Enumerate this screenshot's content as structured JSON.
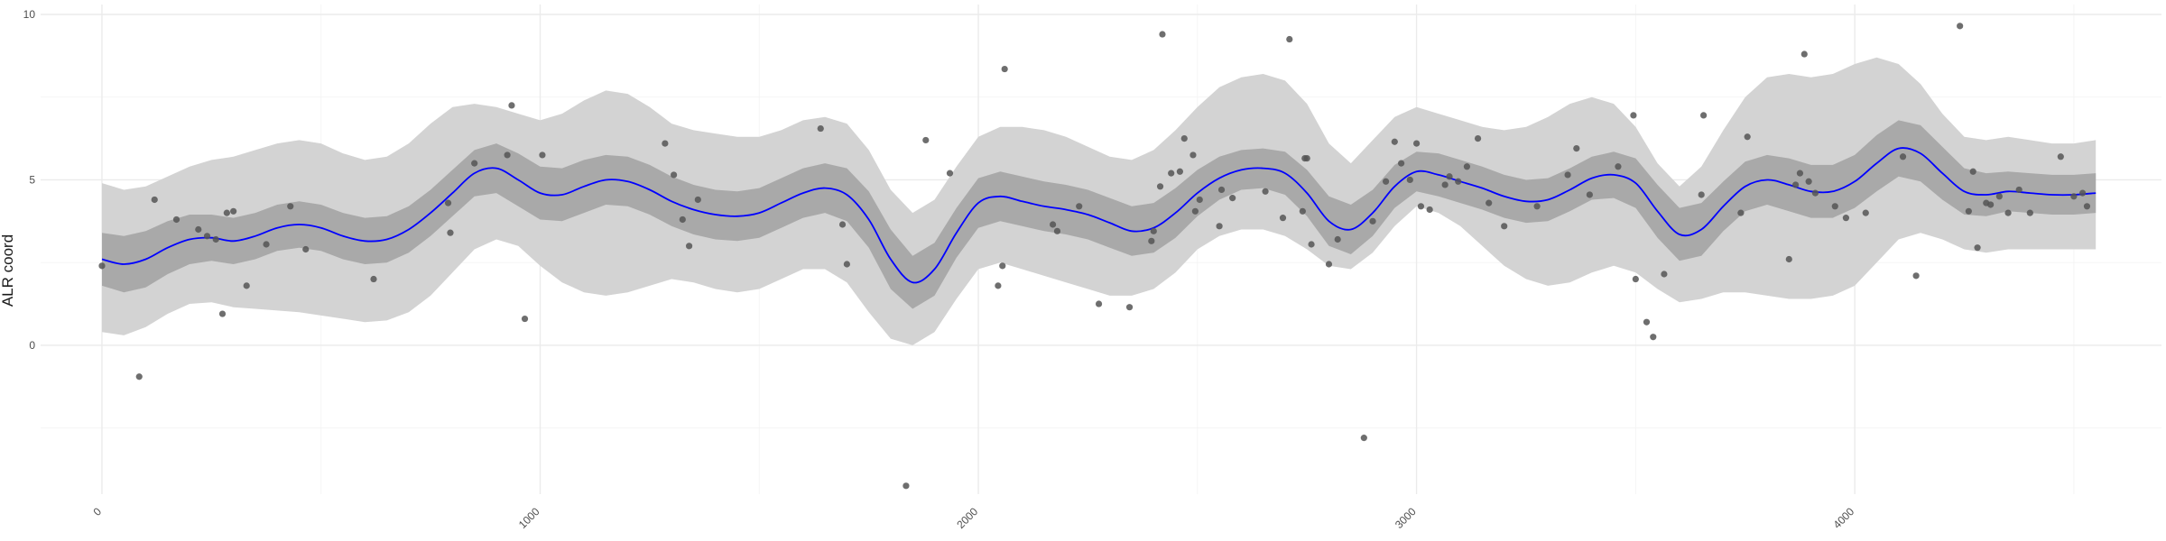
{
  "chart_data": {
    "type": "line",
    "title": "",
    "xlabel": "",
    "ylabel": "ALR coord",
    "xlim": [
      -140,
      4700
    ],
    "ylim": [
      -4.5,
      10.3
    ],
    "x_ticks": [
      0,
      1000,
      2000,
      3000,
      4000
    ],
    "x_tick_labels": [
      "0",
      "1000",
      "2000",
      "3000",
      "4000"
    ],
    "y_ticks": [
      0,
      5,
      10
    ],
    "y_tick_labels": [
      "0",
      "5",
      "10"
    ],
    "grid": true,
    "legend": "none",
    "colors": {
      "line": "#0000ff",
      "inner_band": "#a9a9a9",
      "outer_band": "#d3d3d3",
      "points": "#555555",
      "grid": "#ebebeb"
    },
    "series": [
      {
        "role": "mean",
        "x": [
          0,
          50,
          100,
          150,
          200,
          250,
          300,
          350,
          400,
          450,
          500,
          550,
          600,
          650,
          700,
          750,
          800,
          850,
          900,
          950,
          1000,
          1050,
          1100,
          1150,
          1200,
          1250,
          1300,
          1350,
          1400,
          1450,
          1500,
          1550,
          1600,
          1650,
          1700,
          1750,
          1800,
          1850,
          1900,
          1950,
          2000,
          2050,
          2100,
          2150,
          2200,
          2250,
          2300,
          2350,
          2400,
          2450,
          2500,
          2550,
          2600,
          2650,
          2700,
          2750,
          2800,
          2850,
          2900,
          2950,
          3000,
          3050,
          3100,
          3150,
          3200,
          3250,
          3300,
          3350,
          3400,
          3450,
          3500,
          3550,
          3600,
          3650,
          3700,
          3750,
          3800,
          3850,
          3900,
          3950,
          4000,
          4050,
          4100,
          4150,
          4200,
          4250,
          4300,
          4350,
          4400,
          4450,
          4500,
          4550
        ],
        "y": [
          2.6,
          2.45,
          2.6,
          2.95,
          3.2,
          3.25,
          3.15,
          3.3,
          3.55,
          3.65,
          3.55,
          3.3,
          3.15,
          3.2,
          3.5,
          4.0,
          4.6,
          5.2,
          5.35,
          5.0,
          4.6,
          4.55,
          4.8,
          5.0,
          4.95,
          4.7,
          4.35,
          4.1,
          3.95,
          3.9,
          4.0,
          4.3,
          4.6,
          4.75,
          4.55,
          3.8,
          2.6,
          1.9,
          2.3,
          3.4,
          4.3,
          4.5,
          4.35,
          4.2,
          4.1,
          3.95,
          3.7,
          3.45,
          3.55,
          4.0,
          4.6,
          5.05,
          5.3,
          5.35,
          5.2,
          4.6,
          3.75,
          3.5,
          4.0,
          4.8,
          5.25,
          5.15,
          4.95,
          4.75,
          4.5,
          4.35,
          4.4,
          4.7,
          5.05,
          5.15,
          4.9,
          4.05,
          3.35,
          3.5,
          4.2,
          4.8,
          5.0,
          4.85,
          4.65,
          4.65,
          4.95,
          5.5,
          5.95,
          5.8,
          5.2,
          4.65,
          4.55,
          4.65,
          4.6,
          4.55,
          4.55,
          4.6
        ]
      },
      {
        "role": "inner_band_upper",
        "x": [
          0,
          50,
          100,
          150,
          200,
          250,
          300,
          350,
          400,
          450,
          500,
          550,
          600,
          650,
          700,
          750,
          800,
          850,
          900,
          950,
          1000,
          1050,
          1100,
          1150,
          1200,
          1250,
          1300,
          1350,
          1400,
          1450,
          1500,
          1550,
          1600,
          1650,
          1700,
          1750,
          1800,
          1850,
          1900,
          1950,
          2000,
          2050,
          2100,
          2150,
          2200,
          2250,
          2300,
          2350,
          2400,
          2450,
          2500,
          2550,
          2600,
          2650,
          2700,
          2750,
          2800,
          2850,
          2900,
          2950,
          3000,
          3050,
          3100,
          3150,
          3200,
          3250,
          3300,
          3350,
          3400,
          3450,
          3500,
          3550,
          3600,
          3650,
          3700,
          3750,
          3800,
          3850,
          3900,
          3950,
          4000,
          4050,
          4100,
          4150,
          4200,
          4250,
          4300,
          4350,
          4400,
          4450,
          4500,
          4550
        ],
        "y": [
          3.4,
          3.3,
          3.45,
          3.75,
          3.95,
          3.95,
          3.85,
          4.0,
          4.25,
          4.35,
          4.25,
          4.0,
          3.85,
          3.9,
          4.2,
          4.7,
          5.3,
          5.9,
          6.1,
          5.8,
          5.4,
          5.35,
          5.6,
          5.75,
          5.7,
          5.45,
          5.1,
          4.85,
          4.7,
          4.65,
          4.75,
          5.05,
          5.35,
          5.5,
          5.35,
          4.65,
          3.5,
          2.7,
          3.1,
          4.15,
          5.05,
          5.25,
          5.1,
          4.95,
          4.85,
          4.7,
          4.45,
          4.2,
          4.3,
          4.75,
          5.3,
          5.7,
          5.9,
          5.95,
          5.85,
          5.3,
          4.5,
          4.25,
          4.7,
          5.45,
          5.85,
          5.8,
          5.6,
          5.4,
          5.15,
          5.0,
          5.05,
          5.35,
          5.7,
          5.85,
          5.65,
          4.85,
          4.15,
          4.3,
          4.95,
          5.55,
          5.75,
          5.65,
          5.45,
          5.45,
          5.75,
          6.35,
          6.8,
          6.65,
          6.0,
          5.35,
          5.2,
          5.25,
          5.2,
          5.15,
          5.15,
          5.2
        ]
      },
      {
        "role": "inner_band_lower",
        "x": [
          0,
          50,
          100,
          150,
          200,
          250,
          300,
          350,
          400,
          450,
          500,
          550,
          600,
          650,
          700,
          750,
          800,
          850,
          900,
          950,
          1000,
          1050,
          1100,
          1150,
          1200,
          1250,
          1300,
          1350,
          1400,
          1450,
          1500,
          1550,
          1600,
          1650,
          1700,
          1750,
          1800,
          1850,
          1900,
          1950,
          2000,
          2050,
          2100,
          2150,
          2200,
          2250,
          2300,
          2350,
          2400,
          2450,
          2500,
          2550,
          2600,
          2650,
          2700,
          2750,
          2800,
          2850,
          2900,
          2950,
          3000,
          3050,
          3100,
          3150,
          3200,
          3250,
          3300,
          3350,
          3400,
          3450,
          3500,
          3550,
          3600,
          3650,
          3700,
          3750,
          3800,
          3850,
          3900,
          3950,
          4000,
          4050,
          4100,
          4150,
          4200,
          4250,
          4300,
          4350,
          4400,
          4450,
          4500,
          4550
        ],
        "y": [
          1.8,
          1.6,
          1.75,
          2.15,
          2.45,
          2.55,
          2.45,
          2.6,
          2.85,
          2.95,
          2.85,
          2.6,
          2.45,
          2.5,
          2.8,
          3.3,
          3.9,
          4.5,
          4.6,
          4.2,
          3.8,
          3.75,
          4.0,
          4.25,
          4.2,
          3.95,
          3.6,
          3.35,
          3.2,
          3.15,
          3.25,
          3.55,
          3.85,
          4.0,
          3.75,
          2.95,
          1.7,
          1.1,
          1.5,
          2.65,
          3.55,
          3.75,
          3.6,
          3.45,
          3.35,
          3.2,
          2.95,
          2.7,
          2.8,
          3.25,
          3.9,
          4.4,
          4.7,
          4.75,
          4.55,
          3.9,
          3.0,
          2.75,
          3.3,
          4.15,
          4.65,
          4.5,
          4.3,
          4.1,
          3.85,
          3.7,
          3.75,
          4.05,
          4.4,
          4.45,
          4.15,
          3.25,
          2.55,
          2.7,
          3.45,
          4.05,
          4.25,
          4.05,
          3.85,
          3.85,
          4.15,
          4.65,
          5.1,
          4.95,
          4.4,
          3.95,
          3.9,
          4.05,
          4.0,
          3.95,
          3.95,
          4.0
        ]
      },
      {
        "role": "outer_band_upper",
        "x": [
          0,
          50,
          100,
          150,
          200,
          250,
          300,
          350,
          400,
          450,
          500,
          550,
          600,
          650,
          700,
          750,
          800,
          850,
          900,
          950,
          1000,
          1050,
          1100,
          1150,
          1200,
          1250,
          1300,
          1350,
          1400,
          1450,
          1500,
          1550,
          1600,
          1650,
          1700,
          1750,
          1800,
          1850,
          1900,
          1950,
          2000,
          2050,
          2100,
          2150,
          2200,
          2250,
          2300,
          2350,
          2400,
          2450,
          2500,
          2550,
          2600,
          2650,
          2700,
          2750,
          2800,
          2850,
          2900,
          2950,
          3000,
          3050,
          3100,
          3150,
          3200,
          3250,
          3300,
          3350,
          3400,
          3450,
          3500,
          3550,
          3600,
          3650,
          3700,
          3750,
          3800,
          3850,
          3900,
          3950,
          4000,
          4050,
          4100,
          4150,
          4200,
          4250,
          4300,
          4350,
          4400,
          4450,
          4500,
          4550
        ],
        "y": [
          4.9,
          4.7,
          4.8,
          5.1,
          5.4,
          5.6,
          5.7,
          5.9,
          6.1,
          6.2,
          6.1,
          5.8,
          5.6,
          5.7,
          6.1,
          6.7,
          7.2,
          7.3,
          7.2,
          7.0,
          6.8,
          7.0,
          7.4,
          7.7,
          7.6,
          7.2,
          6.7,
          6.5,
          6.4,
          6.3,
          6.3,
          6.5,
          6.8,
          6.9,
          6.7,
          5.9,
          4.7,
          4.0,
          4.4,
          5.4,
          6.3,
          6.6,
          6.6,
          6.5,
          6.3,
          6.0,
          5.7,
          5.6,
          5.9,
          6.5,
          7.2,
          7.8,
          8.1,
          8.2,
          8.0,
          7.3,
          6.1,
          5.5,
          6.2,
          6.9,
          7.2,
          7.0,
          6.8,
          6.6,
          6.5,
          6.6,
          6.9,
          7.3,
          7.5,
          7.3,
          6.6,
          5.5,
          4.8,
          5.4,
          6.5,
          7.5,
          8.1,
          8.2,
          8.1,
          8.2,
          8.5,
          8.7,
          8.5,
          7.9,
          7.0,
          6.3,
          6.2,
          6.3,
          6.2,
          6.1,
          6.1,
          6.2
        ]
      },
      {
        "role": "outer_band_lower",
        "x": [
          0,
          50,
          100,
          150,
          200,
          250,
          300,
          350,
          400,
          450,
          500,
          550,
          600,
          650,
          700,
          750,
          800,
          850,
          900,
          950,
          1000,
          1050,
          1100,
          1150,
          1200,
          1250,
          1300,
          1350,
          1400,
          1450,
          1500,
          1550,
          1600,
          1650,
          1700,
          1750,
          1800,
          1850,
          1900,
          1950,
          2000,
          2050,
          2100,
          2150,
          2200,
          2250,
          2300,
          2350,
          2400,
          2450,
          2500,
          2550,
          2600,
          2650,
          2700,
          2750,
          2800,
          2850,
          2900,
          2950,
          3000,
          3050,
          3100,
          3150,
          3200,
          3250,
          3300,
          3350,
          3400,
          3450,
          3500,
          3550,
          3600,
          3650,
          3700,
          3750,
          3800,
          3850,
          3900,
          3950,
          4000,
          4050,
          4100,
          4150,
          4200,
          4250,
          4300,
          4350,
          4400,
          4450,
          4500,
          4550
        ],
        "y": [
          0.4,
          0.3,
          0.55,
          0.95,
          1.25,
          1.3,
          1.15,
          1.1,
          1.05,
          1.0,
          0.9,
          0.8,
          0.7,
          0.75,
          1.0,
          1.5,
          2.2,
          2.9,
          3.2,
          3.0,
          2.4,
          1.9,
          1.6,
          1.5,
          1.6,
          1.8,
          2.0,
          1.9,
          1.7,
          1.6,
          1.7,
          2.0,
          2.3,
          2.3,
          1.9,
          1.0,
          0.2,
          0.0,
          0.4,
          1.4,
          2.3,
          2.5,
          2.3,
          2.1,
          1.9,
          1.7,
          1.5,
          1.5,
          1.7,
          2.2,
          2.9,
          3.3,
          3.5,
          3.5,
          3.3,
          2.9,
          2.4,
          2.3,
          2.8,
          3.6,
          4.2,
          4.0,
          3.6,
          3.0,
          2.4,
          2.0,
          1.8,
          1.9,
          2.2,
          2.4,
          2.2,
          1.7,
          1.3,
          1.4,
          1.6,
          1.6,
          1.5,
          1.4,
          1.4,
          1.5,
          1.8,
          2.5,
          3.2,
          3.4,
          3.2,
          2.9,
          2.8,
          2.9,
          2.9,
          2.9,
          2.9,
          2.9
        ]
      }
    ],
    "points": {
      "x": [
        0,
        85,
        120,
        170,
        220,
        240,
        260,
        275,
        285,
        300,
        330,
        375,
        430,
        465,
        620,
        790,
        795,
        850,
        925,
        935,
        965,
        1005,
        1285,
        1305,
        1325,
        1340,
        1360,
        1640,
        1690,
        1700,
        1835,
        1880,
        1935,
        2045,
        2055,
        2060,
        2170,
        2180,
        2230,
        2275,
        2345,
        2395,
        2400,
        2415,
        2420,
        2440,
        2460,
        2470,
        2490,
        2495,
        2505,
        2550,
        2555,
        2580,
        2655,
        2695,
        2710,
        2740,
        2745,
        2750,
        2760,
        2800,
        2820,
        2880,
        2900,
        2930,
        2950,
        2965,
        2985,
        3000,
        3010,
        3030,
        3065,
        3075,
        3095,
        3115,
        3140,
        3165,
        3200,
        3275,
        3345,
        3365,
        3395,
        3460,
        3495,
        3500,
        3525,
        3540,
        3565,
        3650,
        3655,
        3740,
        3755,
        3850,
        3865,
        3875,
        3885,
        3895,
        3910,
        3955,
        3980,
        4025,
        4110,
        4140,
        4240,
        4260,
        4270,
        4280,
        4300,
        4310,
        4330,
        4350,
        4375,
        4400,
        4470,
        4500,
        4520,
        4530
      ],
      "y": [
        2.4,
        -0.95,
        4.4,
        3.8,
        3.5,
        3.3,
        3.2,
        0.95,
        4.0,
        4.05,
        1.8,
        3.05,
        4.2,
        2.9,
        2.0,
        4.3,
        3.4,
        5.5,
        5.75,
        7.25,
        0.8,
        5.75,
        6.1,
        5.15,
        3.8,
        3.0,
        4.4,
        6.55,
        3.65,
        2.45,
        -4.25,
        6.2,
        5.2,
        1.8,
        2.4,
        8.35,
        3.65,
        3.45,
        4.2,
        1.25,
        1.15,
        3.15,
        3.45,
        4.8,
        9.4,
        5.2,
        5.25,
        6.25,
        5.75,
        4.05,
        4.4,
        3.6,
        4.7,
        4.45,
        4.65,
        3.85,
        9.25,
        4.05,
        5.65,
        5.65,
        3.05,
        2.45,
        3.2,
        -2.8,
        3.75,
        4.95,
        6.15,
        5.5,
        5.0,
        6.1,
        4.2,
        4.1,
        4.85,
        5.1,
        4.95,
        5.4,
        6.25,
        4.3,
        3.6,
        4.2,
        5.15,
        5.95,
        4.55,
        5.4,
        6.95,
        2.0,
        0.7,
        0.25,
        2.15,
        4.55,
        6.95,
        4.0,
        6.3,
        2.6,
        4.85,
        5.2,
        8.8,
        4.95,
        4.6,
        4.2,
        3.85,
        4.0,
        5.7,
        2.1,
        9.65,
        4.05,
        5.25,
        2.95,
        4.3,
        4.25,
        4.5,
        4.0,
        4.7,
        4.0,
        5.7,
        4.5,
        4.6,
        4.2
      ]
    }
  }
}
